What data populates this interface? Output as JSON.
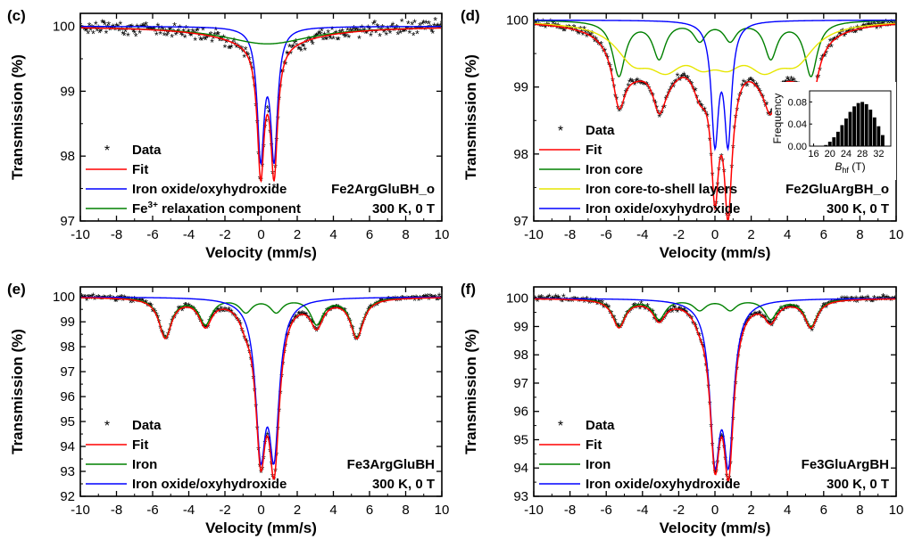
{
  "figure": {
    "xlabel_text": "Velocity (mm/s)",
    "ylabel_text": "Transmission (%)"
  },
  "chart_data": [
    {
      "id": "c",
      "type": "line",
      "panel_label": "(c)",
      "xlabel": "Velocity (mm/s)",
      "ylabel": "Transmission (%)",
      "xlim": [
        -10,
        10
      ],
      "ylim": [
        97,
        100.2
      ],
      "xticks": [
        -10,
        -8,
        -6,
        -4,
        -2,
        0,
        2,
        4,
        6,
        8,
        10
      ],
      "yticks": [
        97,
        98,
        99,
        100
      ],
      "sample_label": "Fe2ArgGluBH_o",
      "condition_label": "300 K, 0 T",
      "legend_position": "bottom-left",
      "legend": [
        {
          "key": "data",
          "label": "Data"
        },
        {
          "key": "fit",
          "label": "Fit"
        },
        {
          "key": "s1",
          "label": "Iron oxide/oxyhydroxide"
        },
        {
          "key": "s2",
          "label_pre": "Fe",
          "label_sup": "3+",
          "label_post": " relaxation component"
        }
      ],
      "noise": 0.07,
      "series": [
        {
          "key": "s1",
          "name": "Iron oxide/oxyhydroxide",
          "color": "#0000ff",
          "components": [
            {
              "pos": [
                -0.02,
                0.72
              ],
              "depth": 1.95,
              "width": 0.23
            }
          ]
        },
        {
          "key": "s2",
          "name": "Fe3+ relaxation component",
          "color": "#008000",
          "components": [
            {
              "pos": [
                0.35
              ],
              "depth": 0.27,
              "width": 3.0
            }
          ]
        },
        {
          "key": "fit",
          "name": "Fit",
          "color": "#ff0000",
          "sum_of": [
            "s1",
            "s2"
          ]
        }
      ]
    },
    {
      "id": "d",
      "type": "line",
      "panel_label": "(d)",
      "xlabel": "Velocity (mm/s)",
      "ylabel": "Transmission (%)",
      "xlim": [
        -10,
        10
      ],
      "ylim": [
        97,
        100.1
      ],
      "xticks": [
        -10,
        -8,
        -6,
        -4,
        -2,
        0,
        2,
        4,
        6,
        8,
        10
      ],
      "yticks": [
        97,
        98,
        99,
        100
      ],
      "sample_label": "Fe2GluArgBH_o",
      "condition_label": "300 K, 0 T",
      "legend_position": "bottom-left",
      "legend": [
        {
          "key": "data",
          "label": "Data"
        },
        {
          "key": "fit",
          "label": "Fit"
        },
        {
          "key": "s1",
          "label": "Iron core"
        },
        {
          "key": "s2",
          "label": "Iron core-to-shell layers"
        },
        {
          "key": "s3",
          "label": "Iron oxide/oxyhydroxide"
        }
      ],
      "noise": 0.04,
      "series": [
        {
          "key": "s1",
          "name": "Iron core",
          "color": "#008000",
          "components": [
            {
              "pos": [
                -5.3,
                5.3
              ],
              "depth": 0.82,
              "width": 0.42
            },
            {
              "pos": [
                -3.08,
                3.08
              ],
              "depth": 0.55,
              "width": 0.42
            },
            {
              "pos": [
                -0.84,
                0.84
              ],
              "depth": 0.28,
              "width": 0.42
            }
          ]
        },
        {
          "key": "s2",
          "name": "Iron core-to-shell layers",
          "color": "#e6e600",
          "components": [
            {
              "pos": [
                -4.5,
                4.5
              ],
              "depth": 0.48,
              "width": 1.2
            },
            {
              "pos": [
                -2.7,
                2.7
              ],
              "depth": 0.52,
              "width": 1.2
            },
            {
              "pos": [
                -0.7,
                0.7
              ],
              "depth": 0.38,
              "width": 1.0
            }
          ]
        },
        {
          "key": "s3",
          "name": "Iron oxide/oxyhydroxide",
          "color": "#0000ff",
          "components": [
            {
              "pos": [
                0.0,
                0.72
              ],
              "depth": 1.75,
              "width": 0.24
            }
          ]
        },
        {
          "key": "fit",
          "name": "Fit",
          "color": "#ff0000",
          "sum_of": [
            "s1",
            "s2",
            "s3"
          ]
        }
      ],
      "inset": {
        "type": "bar",
        "xlabel_pre": "B",
        "xlabel_sub": "hf",
        "xlabel_post": " (T)",
        "ylabel": "Frequency",
        "xlim": [
          15,
          35
        ],
        "ylim": [
          0,
          0.1
        ],
        "xticks": [
          16,
          20,
          24,
          28,
          32
        ],
        "yticks": [
          0.0,
          0.04,
          0.08
        ],
        "ytick_labels": [
          "0.00",
          "0.04",
          "0.08"
        ],
        "categories": [
          19,
          20,
          21,
          22,
          23,
          24,
          25,
          26,
          27,
          28,
          29,
          30,
          31,
          32,
          33
        ],
        "values": [
          0.002,
          0.008,
          0.016,
          0.026,
          0.038,
          0.05,
          0.062,
          0.072,
          0.078,
          0.08,
          0.076,
          0.066,
          0.052,
          0.036,
          0.02
        ]
      }
    },
    {
      "id": "e",
      "type": "line",
      "panel_label": "(e)",
      "xlabel": "Velocity (mm/s)",
      "ylabel": "Transmission (%)",
      "xlim": [
        -10,
        10
      ],
      "ylim": [
        92,
        100.4
      ],
      "xticks": [
        -10,
        -8,
        -6,
        -4,
        -2,
        0,
        2,
        4,
        6,
        8,
        10
      ],
      "yticks": [
        92,
        93,
        94,
        95,
        96,
        97,
        98,
        99,
        100
      ],
      "sample_label": "Fe3ArgGluBH",
      "condition_label": "300 K, 0 T",
      "legend_position": "bottom-left",
      "legend": [
        {
          "key": "data",
          "label": "Data"
        },
        {
          "key": "fit",
          "label": "Fit"
        },
        {
          "key": "s1",
          "label": "Iron"
        },
        {
          "key": "s2",
          "label": "Iron oxide/oxyhydroxide"
        }
      ],
      "noise": 0.06,
      "series": [
        {
          "key": "s1",
          "name": "Iron",
          "color": "#008000",
          "components": [
            {
              "pos": [
                -5.3,
                5.3
              ],
              "depth": 1.58,
              "width": 0.42
            },
            {
              "pos": [
                -3.08,
                3.08
              ],
              "depth": 1.05,
              "width": 0.42
            },
            {
              "pos": [
                -0.84,
                0.84
              ],
              "depth": 0.55,
              "width": 0.42
            }
          ]
        },
        {
          "key": "s2",
          "name": "Iron oxide/oxyhydroxide",
          "color": "#0000ff",
          "components": [
            {
              "pos": [
                -0.02,
                0.72
              ],
              "depth": 5.7,
              "width": 0.34
            }
          ]
        },
        {
          "key": "fit",
          "name": "Fit",
          "color": "#ff0000",
          "sum_of": [
            "s1",
            "s2"
          ]
        }
      ]
    },
    {
      "id": "f",
      "type": "line",
      "panel_label": "(f)",
      "xlabel": "Velocity (mm/s)",
      "ylabel": "Transmission (%)",
      "xlim": [
        -10,
        10
      ],
      "ylim": [
        93,
        100.4
      ],
      "xticks": [
        -10,
        -8,
        -6,
        -4,
        -2,
        0,
        2,
        4,
        6,
        8,
        10
      ],
      "yticks": [
        93,
        94,
        95,
        96,
        97,
        98,
        99,
        100
      ],
      "sample_label": "Fe3GluArgBH",
      "condition_label": "300 K, 0 T",
      "legend_position": "bottom-left",
      "legend": [
        {
          "key": "data",
          "label": "Data"
        },
        {
          "key": "fit",
          "label": "Fit"
        },
        {
          "key": "s1",
          "label": "Iron"
        },
        {
          "key": "s2",
          "label": "Iron oxide/oxyhydroxide"
        }
      ],
      "noise": 0.06,
      "series": [
        {
          "key": "s1",
          "name": "Iron",
          "color": "#008000",
          "components": [
            {
              "pos": [
                -5.3,
                5.3
              ],
              "depth": 0.98,
              "width": 0.42
            },
            {
              "pos": [
                -3.08,
                3.08
              ],
              "depth": 0.7,
              "width": 0.42
            },
            {
              "pos": [
                -0.84,
                0.84
              ],
              "depth": 0.38,
              "width": 0.42
            }
          ]
        },
        {
          "key": "s2",
          "name": "Iron oxide/oxyhydroxide",
          "color": "#0000ff",
          "components": [
            {
              "pos": [
                0.0,
                0.75
              ],
              "depth": 5.15,
              "width": 0.34
            }
          ]
        },
        {
          "key": "fit",
          "name": "Fit",
          "color": "#ff0000",
          "sum_of": [
            "s1",
            "s2"
          ]
        }
      ]
    }
  ]
}
